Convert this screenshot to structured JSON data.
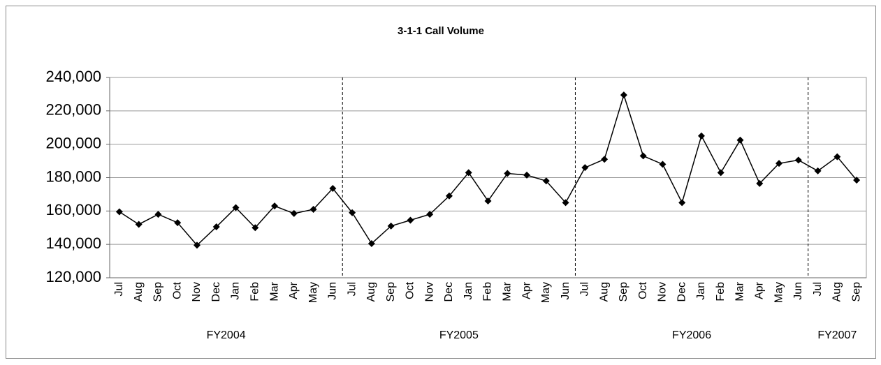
{
  "chart_data": {
    "type": "line",
    "title": "3-1-1 Call Volume",
    "groups": [
      {
        "name": "FY2004",
        "categories": [
          "Jul",
          "Aug",
          "Sep",
          "Oct",
          "Nov",
          "Dec",
          "Jan",
          "Feb",
          "Mar",
          "Apr",
          "May",
          "Jun"
        ]
      },
      {
        "name": "FY2005",
        "categories": [
          "Jul",
          "Aug",
          "Sep",
          "Oct",
          "Nov",
          "Dec",
          "Jan",
          "Feb",
          "Mar",
          "Apr",
          "May",
          "Jun"
        ]
      },
      {
        "name": "FY2006",
        "categories": [
          "Jul",
          "Aug",
          "Sep",
          "Oct",
          "Nov",
          "Dec",
          "Jan",
          "Feb",
          "Mar",
          "Apr",
          "May",
          "Jun"
        ]
      },
      {
        "name": "FY2007",
        "categories": [
          "Jul",
          "Aug",
          "Sep"
        ]
      }
    ],
    "series": [
      {
        "color": "#000000",
        "values": [
          159500,
          152000,
          158000,
          153000,
          139500,
          150500,
          162000,
          150000,
          163000,
          158500,
          161000,
          173500,
          159000,
          140500,
          151000,
          154500,
          158000,
          169000,
          183000,
          166000,
          182500,
          181500,
          178000,
          165000,
          186000,
          191000,
          229500,
          193000,
          188000,
          165000,
          205000,
          183000,
          202500,
          176500,
          188500,
          190500,
          184000,
          192500,
          178500
        ]
      }
    ],
    "ylim": [
      120000,
      240000
    ],
    "yticks": [
      {
        "value": 120000,
        "label": "120,000"
      },
      {
        "value": 140000,
        "label": "140,000"
      },
      {
        "value": 160000,
        "label": "160,000"
      },
      {
        "value": 180000,
        "label": "180,000"
      },
      {
        "value": 200000,
        "label": "200,000"
      },
      {
        "value": 220000,
        "label": "220,000"
      },
      {
        "value": 240000,
        "label": "240,000"
      }
    ],
    "grid": true
  }
}
